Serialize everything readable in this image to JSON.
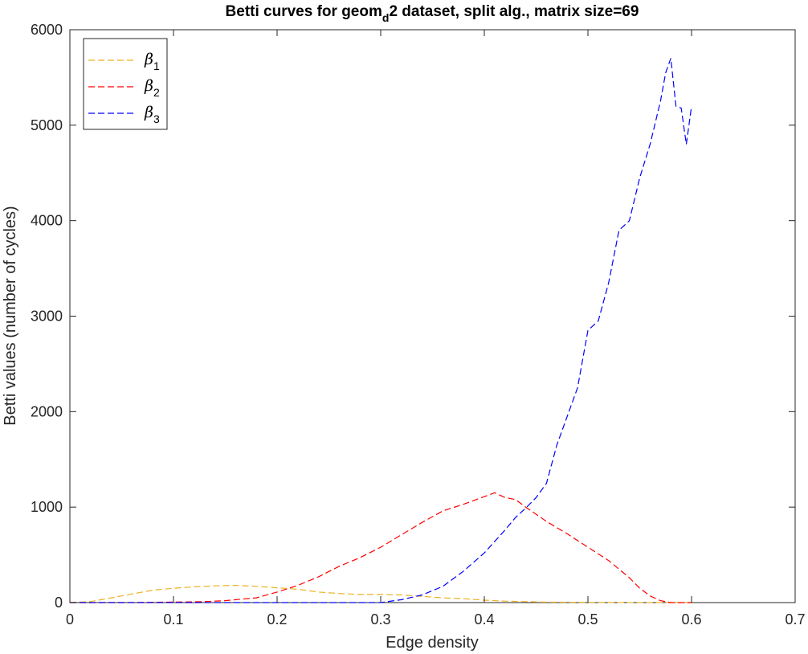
{
  "chart_data": {
    "type": "line",
    "title_main": "Betti curves for geom",
    "title_sub": "d",
    "title_rest": "2 dataset, split alg., matrix size=69",
    "xlabel": "Edge density",
    "ylabel": "Betti values (number of cycles)",
    "xlim": [
      0,
      0.7
    ],
    "ylim": [
      0,
      6000
    ],
    "xticks": [
      0,
      0.1,
      0.2,
      0.3,
      0.4,
      0.5,
      0.6,
      0.7
    ],
    "xtick_labels": [
      "0",
      "0.1",
      "0.2",
      "0.3",
      "0.4",
      "0.5",
      "0.6",
      "0.7"
    ],
    "yticks": [
      0,
      1000,
      2000,
      3000,
      4000,
      5000,
      6000
    ],
    "ytick_labels": [
      "0",
      "1000",
      "2000",
      "3000",
      "4000",
      "5000",
      "6000"
    ],
    "grid": false,
    "legend_position": "top-left",
    "line_style": "dashed",
    "series": [
      {
        "name": "β",
        "subscript": "1",
        "color": "#EDB120",
        "x": [
          0,
          0.02,
          0.04,
          0.06,
          0.08,
          0.1,
          0.12,
          0.14,
          0.16,
          0.18,
          0.2,
          0.22,
          0.24,
          0.26,
          0.28,
          0.3,
          0.32,
          0.34,
          0.36,
          0.38,
          0.4,
          0.42,
          0.44,
          0.46,
          0.48,
          0.5,
          0.55,
          0.6
        ],
        "y": [
          0,
          10,
          50,
          90,
          130,
          150,
          165,
          175,
          180,
          170,
          155,
          140,
          110,
          95,
          85,
          85,
          80,
          65,
          50,
          40,
          25,
          15,
          10,
          5,
          3,
          2,
          0,
          0
        ]
      },
      {
        "name": "β",
        "subscript": "2",
        "color": "#FF0000",
        "x": [
          0,
          0.05,
          0.1,
          0.13,
          0.15,
          0.18,
          0.2,
          0.22,
          0.24,
          0.26,
          0.28,
          0.3,
          0.32,
          0.34,
          0.36,
          0.38,
          0.4,
          0.41,
          0.42,
          0.43,
          0.44,
          0.46,
          0.48,
          0.5,
          0.52,
          0.54,
          0.55,
          0.56,
          0.57,
          0.58,
          0.6
        ],
        "y": [
          0,
          0,
          5,
          10,
          20,
          50,
          110,
          180,
          270,
          380,
          470,
          580,
          710,
          840,
          960,
          1030,
          1110,
          1150,
          1100,
          1080,
          1000,
          850,
          720,
          580,
          440,
          260,
          150,
          70,
          20,
          0,
          0
        ]
      },
      {
        "name": "β",
        "subscript": "3",
        "color": "#0000FF",
        "x": [
          0,
          0.1,
          0.2,
          0.3,
          0.32,
          0.34,
          0.36,
          0.38,
          0.4,
          0.42,
          0.43,
          0.44,
          0.45,
          0.46,
          0.47,
          0.48,
          0.49,
          0.5,
          0.51,
          0.52,
          0.53,
          0.54,
          0.55,
          0.56,
          0.57,
          0.575,
          0.58,
          0.585,
          0.59,
          0.595,
          0.6
        ],
        "y": [
          0,
          0,
          0,
          0,
          30,
          80,
          170,
          330,
          520,
          760,
          890,
          990,
          1100,
          1250,
          1650,
          1950,
          2250,
          2850,
          2950,
          3350,
          3900,
          4000,
          4450,
          4800,
          5250,
          5550,
          5700,
          5200,
          5180,
          4800,
          5200
        ]
      }
    ]
  }
}
